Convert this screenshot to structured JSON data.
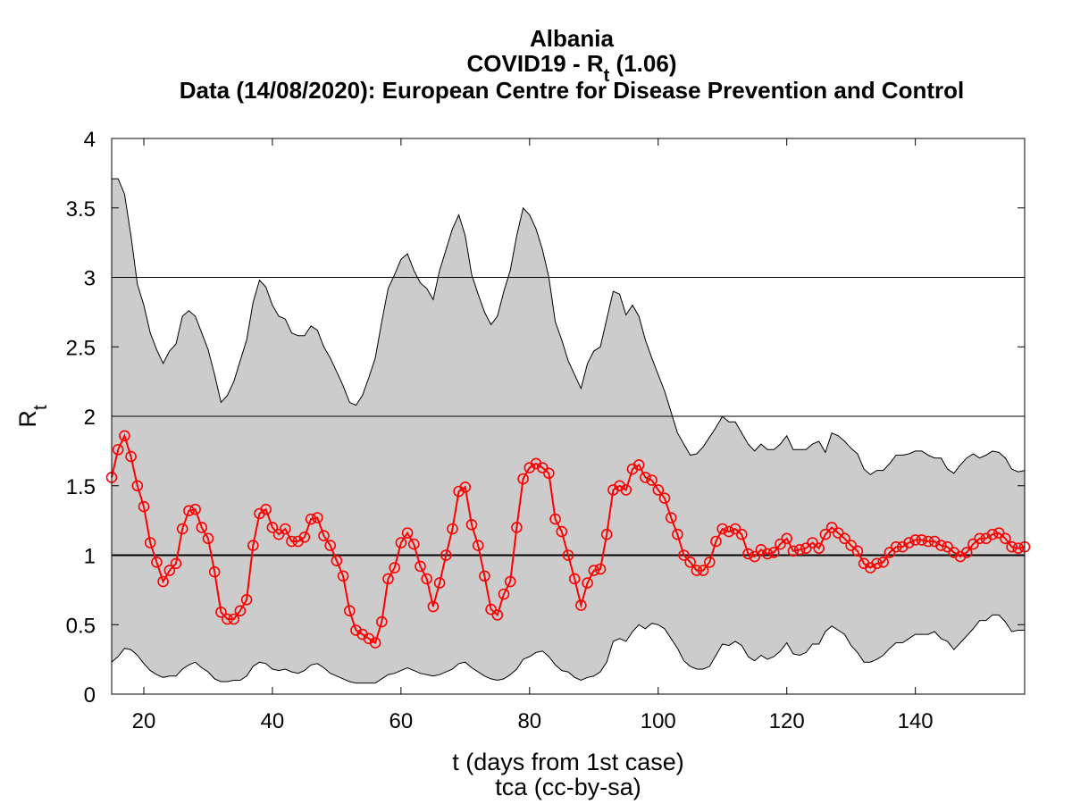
{
  "titles": {
    "line1": "Albania",
    "line2_prefix": "COVID19 - R",
    "line2_sub": "t",
    "line2_suffix": " (1.06)",
    "line3": "Data (14/08/2020): European Centre for Disease Prevention and Control"
  },
  "axes": {
    "xlabel": "t (days from 1st case)",
    "ylabel_main": "R",
    "ylabel_sub": "t",
    "credit": "tca (cc-by-sa)"
  },
  "chart_data": {
    "type": "line",
    "xlim": [
      15,
      157
    ],
    "ylim": [
      0,
      4
    ],
    "x_ticks": [
      20,
      40,
      60,
      80,
      100,
      120,
      140
    ],
    "y_ticks": [
      0,
      0.5,
      1,
      1.5,
      2,
      2.5,
      3,
      3.5,
      4
    ],
    "y_tick_labels": [
      "0",
      "0.5",
      "1",
      "1.5",
      "2",
      "2.5",
      "3",
      "3.5",
      "4"
    ],
    "reference_lines": [
      1,
      2,
      3
    ],
    "grid": false,
    "legend": "none",
    "colors": {
      "band": "#cccccc",
      "series": "#ff0000",
      "ref_strong": "#000000",
      "ref_light": "#000000"
    },
    "series": [
      {
        "label": "",
        "x": [
          15,
          16,
          17,
          18,
          19,
          20,
          21,
          22,
          23,
          24,
          25,
          26,
          27,
          28,
          29,
          30,
          31,
          32,
          33,
          34,
          35,
          36,
          37,
          38,
          39,
          40,
          41,
          42,
          43,
          44,
          45,
          46,
          47,
          48,
          49,
          50,
          51,
          52,
          53,
          54,
          55,
          56,
          57,
          58,
          59,
          60,
          61,
          62,
          63,
          64,
          65,
          66,
          67,
          68,
          69,
          70,
          71,
          72,
          73,
          74,
          75,
          76,
          77,
          78,
          79,
          80,
          81,
          82,
          83,
          84,
          85,
          86,
          87,
          88,
          89,
          90,
          91,
          92,
          93,
          94,
          95,
          96,
          97,
          98,
          99,
          100,
          101,
          102,
          103,
          104,
          105,
          106,
          107,
          108,
          109,
          110,
          111,
          112,
          113,
          114,
          115,
          116,
          117,
          118,
          119,
          120,
          121,
          122,
          123,
          124,
          125,
          126,
          127,
          128,
          129,
          130,
          131,
          132,
          133,
          134,
          135,
          136,
          137,
          138,
          139,
          140,
          141,
          142,
          143,
          144,
          145,
          146,
          147,
          148,
          149,
          150,
          151,
          152,
          153,
          154,
          155,
          156,
          157
        ],
        "y": [
          1.56,
          1.76,
          1.86,
          1.71,
          1.5,
          1.35,
          1.09,
          0.95,
          0.81,
          0.89,
          0.94,
          1.19,
          1.32,
          1.33,
          1.2,
          1.12,
          0.88,
          0.59,
          0.54,
          0.54,
          0.6,
          0.68,
          1.07,
          1.3,
          1.33,
          1.2,
          1.15,
          1.19,
          1.1,
          1.1,
          1.13,
          1.26,
          1.27,
          1.14,
          1.07,
          0.96,
          0.85,
          0.6,
          0.46,
          0.43,
          0.4,
          0.37,
          0.52,
          0.83,
          0.91,
          1.09,
          1.16,
          1.08,
          0.92,
          0.83,
          0.63,
          0.8,
          1.0,
          1.19,
          1.46,
          1.49,
          1.22,
          1.07,
          0.85,
          0.61,
          0.57,
          0.72,
          0.81,
          1.2,
          1.55,
          1.63,
          1.66,
          1.63,
          1.59,
          1.26,
          1.17,
          1.0,
          0.83,
          0.64,
          0.8,
          0.89,
          0.9,
          1.15,
          1.47,
          1.5,
          1.47,
          1.62,
          1.65,
          1.56,
          1.54,
          1.47,
          1.41,
          1.27,
          1.15,
          1.0,
          0.95,
          0.89,
          0.89,
          0.95,
          1.1,
          1.19,
          1.17,
          1.19,
          1.15,
          1.01,
          0.99,
          1.04,
          1.01,
          1.02,
          1.08,
          1.12,
          1.03,
          1.04,
          1.05,
          1.09,
          1.05,
          1.15,
          1.2,
          1.16,
          1.12,
          1.07,
          1.03,
          0.94,
          0.91,
          0.94,
          0.95,
          1.02,
          1.06,
          1.06,
          1.09,
          1.11,
          1.11,
          1.1,
          1.1,
          1.07,
          1.06,
          1.02,
          0.99,
          1.02,
          1.08,
          1.12,
          1.12,
          1.15,
          1.16,
          1.12,
          1.06,
          1.05,
          1.06
        ]
      }
    ],
    "band": {
      "x": [
        15,
        16,
        17,
        18,
        19,
        20,
        21,
        22,
        23,
        24,
        25,
        26,
        27,
        28,
        29,
        30,
        31,
        32,
        33,
        34,
        35,
        36,
        37,
        38,
        39,
        40,
        41,
        42,
        43,
        44,
        45,
        46,
        47,
        48,
        49,
        50,
        51,
        52,
        53,
        54,
        55,
        56,
        57,
        58,
        59,
        60,
        61,
        62,
        63,
        64,
        65,
        66,
        67,
        68,
        69,
        70,
        71,
        72,
        73,
        74,
        75,
        76,
        77,
        78,
        79,
        80,
        81,
        82,
        83,
        84,
        85,
        86,
        87,
        88,
        89,
        90,
        91,
        92,
        93,
        94,
        95,
        96,
        97,
        98,
        99,
        100,
        101,
        102,
        103,
        104,
        105,
        106,
        107,
        108,
        109,
        110,
        111,
        112,
        113,
        114,
        115,
        116,
        117,
        118,
        119,
        120,
        121,
        122,
        123,
        124,
        125,
        126,
        127,
        128,
        129,
        130,
        131,
        132,
        133,
        134,
        135,
        136,
        137,
        138,
        139,
        140,
        141,
        142,
        143,
        144,
        145,
        146,
        147,
        148,
        149,
        150,
        151,
        152,
        153,
        154,
        155,
        156,
        157
      ],
      "upper": [
        3.71,
        3.71,
        3.6,
        3.3,
        2.95,
        2.8,
        2.6,
        2.48,
        2.38,
        2.47,
        2.52,
        2.72,
        2.76,
        2.72,
        2.6,
        2.48,
        2.3,
        2.1,
        2.15,
        2.25,
        2.4,
        2.55,
        2.82,
        2.98,
        2.93,
        2.8,
        2.72,
        2.7,
        2.6,
        2.58,
        2.58,
        2.65,
        2.62,
        2.5,
        2.42,
        2.32,
        2.22,
        2.1,
        2.08,
        2.15,
        2.28,
        2.42,
        2.68,
        2.92,
        3.02,
        3.13,
        3.17,
        3.05,
        2.96,
        2.92,
        2.84,
        3.05,
        3.2,
        3.35,
        3.45,
        3.3,
        3.02,
        2.88,
        2.75,
        2.66,
        2.72,
        2.9,
        3.05,
        3.3,
        3.5,
        3.45,
        3.35,
        3.2,
        3.0,
        2.68,
        2.55,
        2.4,
        2.3,
        2.2,
        2.38,
        2.47,
        2.5,
        2.7,
        2.9,
        2.88,
        2.73,
        2.8,
        2.72,
        2.55,
        2.42,
        2.3,
        2.18,
        2.03,
        1.88,
        1.8,
        1.72,
        1.73,
        1.78,
        1.85,
        1.92,
        2.0,
        1.96,
        1.96,
        1.88,
        1.8,
        1.75,
        1.8,
        1.76,
        1.76,
        1.8,
        1.86,
        1.76,
        1.76,
        1.76,
        1.8,
        1.82,
        1.74,
        1.88,
        1.86,
        1.82,
        1.77,
        1.73,
        1.62,
        1.58,
        1.61,
        1.61,
        1.66,
        1.72,
        1.72,
        1.73,
        1.75,
        1.75,
        1.72,
        1.7,
        1.7,
        1.62,
        1.59,
        1.65,
        1.7,
        1.73,
        1.7,
        1.72,
        1.75,
        1.74,
        1.7,
        1.62,
        1.6,
        1.61
      ],
      "lower": [
        0.23,
        0.27,
        0.33,
        0.32,
        0.28,
        0.22,
        0.17,
        0.14,
        0.12,
        0.13,
        0.13,
        0.18,
        0.21,
        0.23,
        0.19,
        0.16,
        0.11,
        0.09,
        0.09,
        0.1,
        0.1,
        0.13,
        0.2,
        0.23,
        0.22,
        0.18,
        0.17,
        0.18,
        0.16,
        0.15,
        0.17,
        0.21,
        0.22,
        0.19,
        0.15,
        0.13,
        0.11,
        0.09,
        0.08,
        0.08,
        0.08,
        0.08,
        0.11,
        0.14,
        0.15,
        0.17,
        0.19,
        0.17,
        0.15,
        0.14,
        0.13,
        0.14,
        0.16,
        0.18,
        0.22,
        0.23,
        0.19,
        0.16,
        0.13,
        0.11,
        0.1,
        0.11,
        0.14,
        0.18,
        0.25,
        0.27,
        0.3,
        0.31,
        0.27,
        0.21,
        0.17,
        0.16,
        0.12,
        0.1,
        0.12,
        0.13,
        0.16,
        0.23,
        0.38,
        0.4,
        0.38,
        0.45,
        0.5,
        0.47,
        0.51,
        0.5,
        0.47,
        0.4,
        0.33,
        0.24,
        0.2,
        0.18,
        0.18,
        0.2,
        0.28,
        0.36,
        0.35,
        0.38,
        0.35,
        0.27,
        0.24,
        0.28,
        0.25,
        0.27,
        0.31,
        0.37,
        0.29,
        0.28,
        0.3,
        0.36,
        0.36,
        0.45,
        0.49,
        0.46,
        0.43,
        0.35,
        0.3,
        0.23,
        0.23,
        0.25,
        0.28,
        0.33,
        0.37,
        0.37,
        0.4,
        0.43,
        0.43,
        0.43,
        0.45,
        0.4,
        0.38,
        0.32,
        0.37,
        0.42,
        0.47,
        0.53,
        0.53,
        0.57,
        0.57,
        0.52,
        0.45,
        0.46,
        0.46
      ]
    }
  }
}
